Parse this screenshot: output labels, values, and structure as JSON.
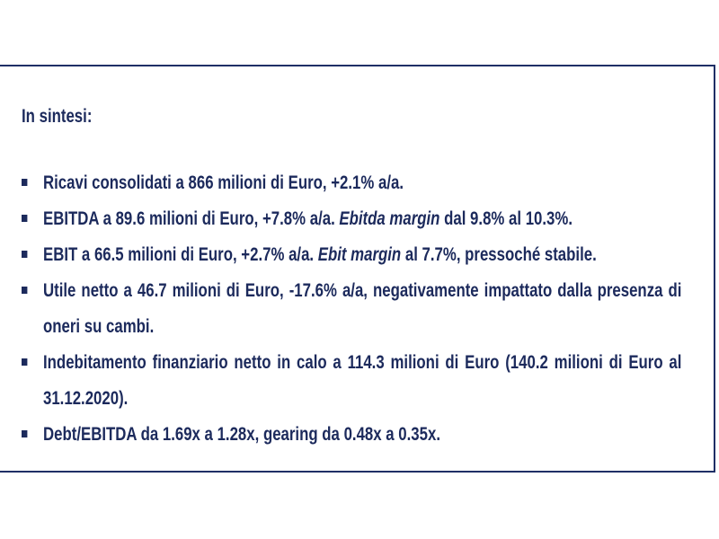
{
  "heading": "In sintesi:",
  "bullets": [
    [
      {
        "text": "Ricavi consolidati a 866 milioni di Euro, +2.1% a/a.",
        "italic": false
      }
    ],
    [
      {
        "text": "EBITDA a 89.6 milioni di Euro, +7.8% a/a. ",
        "italic": false
      },
      {
        "text": "Ebitda margin",
        "italic": true
      },
      {
        "text": " dal 9.8% al 10.3%.",
        "italic": false
      }
    ],
    [
      {
        "text": "EBIT a 66.5 milioni di Euro, +2.7% a/a. ",
        "italic": false
      },
      {
        "text": "Ebit margin",
        "italic": true
      },
      {
        "text": " al 7.7%, pressoché stabile.",
        "italic": false
      }
    ],
    [
      {
        "text": "Utile netto a 46.7 milioni di Euro, -17.6% a/a, negativamente impattato dalla presenza di oneri su cambi.",
        "italic": false
      }
    ],
    [
      {
        "text": "Indebitamento finanziario netto in calo a 114.3 milioni di Euro (140.2 milioni di Euro al 31.12.2020).",
        "italic": false
      }
    ],
    [
      {
        "text": "Debt/EBITDA da 1.69x a 1.28x, gearing da 0.48x a 0.35x.",
        "italic": false
      }
    ]
  ]
}
